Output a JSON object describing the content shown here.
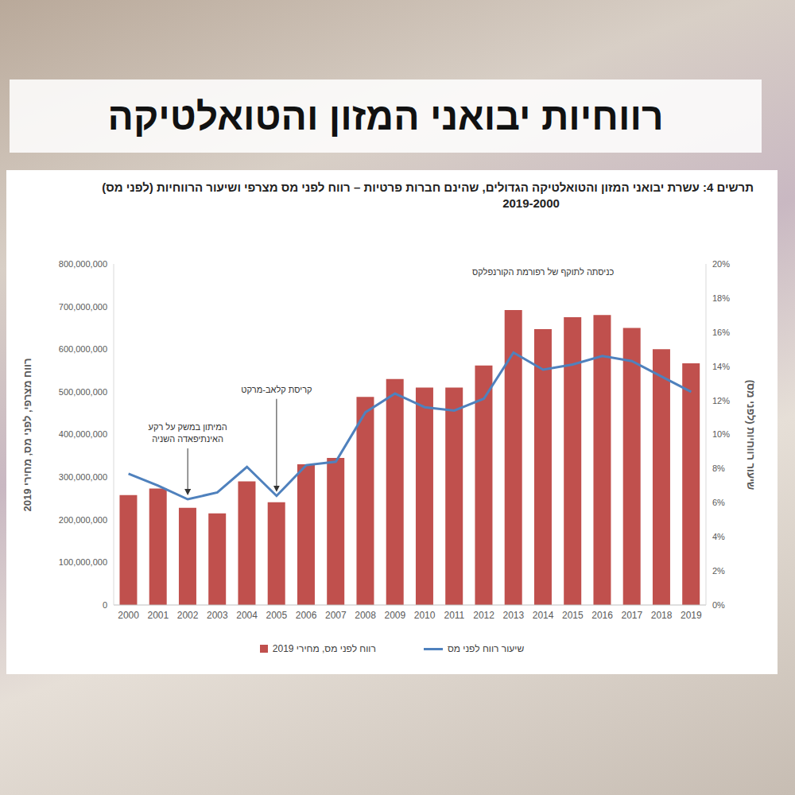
{
  "header": "רווחיות יבואני המזון והטואלטיקה",
  "chart_data": {
    "type": "bar",
    "title": "תרשים 4: עשרת יבואני המזון והטואלטיקה הגדולים, שהינם חברות פרטיות – רווח לפני מס מצרפי ושיעור הרווחיות (לפני מס)",
    "subtitle": "2019-2000",
    "y_label": "רווח מצרפי, לפני מס, מחירי 2019",
    "y2_label": "שיעור רווחיות (לפני מס)",
    "categories": [
      "2000",
      "2001",
      "2002",
      "2003",
      "2004",
      "2005",
      "2006",
      "2007",
      "2008",
      "2009",
      "2010",
      "2011",
      "2012",
      "2013",
      "2014",
      "2015",
      "2016",
      "2017",
      "2018",
      "2019"
    ],
    "series": [
      {
        "name": "רווח לפני מס, מחירי 2019",
        "type": "bar",
        "color": "#c0504d",
        "values": [
          258000000,
          273000000,
          228000000,
          215000000,
          290000000,
          241000000,
          330000000,
          345000000,
          488000000,
          530000000,
          510000000,
          510000000,
          562000000,
          692000000,
          647000000,
          675000000,
          680000000,
          650000000,
          600000000,
          567000000
        ]
      },
      {
        "name": "שיעור רווח לפני מס",
        "type": "line",
        "color": "#4f81bd",
        "axis": "y2",
        "values": [
          7.7,
          7.0,
          6.2,
          6.6,
          8.1,
          6.4,
          8.2,
          8.4,
          11.3,
          12.4,
          11.6,
          11.4,
          12.1,
          14.8,
          13.8,
          14.1,
          14.6,
          14.3,
          13.4,
          12.5
        ]
      }
    ],
    "ylim": [
      0,
      800000000
    ],
    "yticks": [
      0,
      {
        "value": 100000000,
        "label": "100,000,000"
      },
      {
        "value": 200000000,
        "label": "200,000,000"
      },
      {
        "value": 300000000,
        "label": "300,000,000"
      },
      {
        "value": 400000000,
        "label": "400,000,000"
      },
      {
        "value": 500000000,
        "label": "500,000,000"
      },
      {
        "value": 600000000,
        "label": "600,000,000"
      },
      {
        "value": 700000000,
        "label": "700,000,000"
      },
      {
        "value": 800000000,
        "label": "800,000,000"
      }
    ],
    "y2lim": [
      0,
      20
    ],
    "y2ticks": [
      {
        "value": 0,
        "label": "0%"
      },
      {
        "value": 2,
        "label": "2%"
      },
      {
        "value": 4,
        "label": "4%"
      },
      {
        "value": 6,
        "label": "6%"
      },
      {
        "value": 8,
        "label": "8%"
      },
      {
        "value": 10,
        "label": "10%"
      },
      {
        "value": 12,
        "label": "12%"
      },
      {
        "value": 14,
        "label": "14%"
      },
      {
        "value": 16,
        "label": "16%"
      },
      {
        "value": 18,
        "label": "18%"
      },
      {
        "value": 20,
        "label": "20%"
      }
    ],
    "annotations": [
      {
        "text": "המיתון במשק על רקע האינתיפאדה השניה",
        "x": "2002"
      },
      {
        "text": "קריסת קלאב-מרקט",
        "x": "2005"
      }
    ],
    "top_note": {
      "text": "כניסתה לתוקף של רפורמת הקורנפלקס",
      "x": "2014"
    },
    "grid": false,
    "legend": "bottom"
  }
}
